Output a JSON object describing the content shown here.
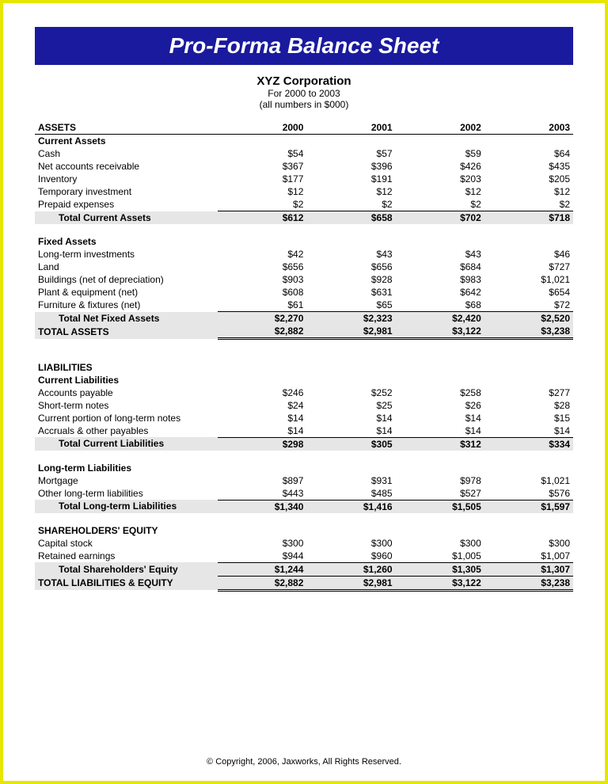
{
  "banner": "Pro-Forma Balance Sheet",
  "company": "XYZ Corporation",
  "range": "For 2000 to 2003",
  "units": "(all numbers in $000)",
  "years": [
    "2000",
    "2001",
    "2002",
    "2003"
  ],
  "assets": {
    "heading": "ASSETS",
    "current": {
      "heading": "Current Assets",
      "rows": [
        {
          "label": "Cash",
          "v": [
            "$54",
            "$57",
            "$59",
            "$64"
          ]
        },
        {
          "label": "Net accounts receivable",
          "v": [
            "$367",
            "$396",
            "$426",
            "$435"
          ]
        },
        {
          "label": "Inventory",
          "v": [
            "$177",
            "$191",
            "$203",
            "$205"
          ]
        },
        {
          "label": "Temporary investment",
          "v": [
            "$12",
            "$12",
            "$12",
            "$12"
          ]
        },
        {
          "label": "Prepaid expenses",
          "v": [
            "$2",
            "$2",
            "$2",
            "$2"
          ]
        }
      ],
      "total": {
        "label": "Total Current Assets",
        "v": [
          "$612",
          "$658",
          "$702",
          "$718"
        ]
      }
    },
    "fixed": {
      "heading": "Fixed Assets",
      "rows": [
        {
          "label": "Long-term investments",
          "v": [
            "$42",
            "$43",
            "$43",
            "$46"
          ]
        },
        {
          "label": "Land",
          "v": [
            "$656",
            "$656",
            "$684",
            "$727"
          ]
        },
        {
          "label": "Buildings (net of depreciation)",
          "v": [
            "$903",
            "$928",
            "$983",
            "$1,021"
          ]
        },
        {
          "label": "Plant & equipment (net)",
          "v": [
            "$608",
            "$631",
            "$642",
            "$654"
          ]
        },
        {
          "label": "Furniture & fixtures (net)",
          "v": [
            "$61",
            "$65",
            "$68",
            "$72"
          ]
        }
      ],
      "total": {
        "label": "Total Net Fixed Assets",
        "v": [
          "$2,270",
          "$2,323",
          "$2,420",
          "$2,520"
        ]
      }
    },
    "total": {
      "label": "TOTAL ASSETS",
      "v": [
        "$2,882",
        "$2,981",
        "$3,122",
        "$3,238"
      ]
    }
  },
  "liabilities": {
    "heading": "LIABILITIES",
    "current": {
      "heading": "Current Liabilities",
      "rows": [
        {
          "label": "Accounts payable",
          "v": [
            "$246",
            "$252",
            "$258",
            "$277"
          ]
        },
        {
          "label": "Short-term notes",
          "v": [
            "$24",
            "$25",
            "$26",
            "$28"
          ]
        },
        {
          "label": "Current portion of long-term notes",
          "v": [
            "$14",
            "$14",
            "$14",
            "$15"
          ]
        },
        {
          "label": "Accruals & other payables",
          "v": [
            "$14",
            "$14",
            "$14",
            "$14"
          ]
        }
      ],
      "total": {
        "label": "Total Current Liabilities",
        "v": [
          "$298",
          "$305",
          "$312",
          "$334"
        ]
      }
    },
    "longterm": {
      "heading": "Long-term Liabilities",
      "rows": [
        {
          "label": "Mortgage",
          "v": [
            "$897",
            "$931",
            "$978",
            "$1,021"
          ]
        },
        {
          "label": "Other long-term liabilities",
          "v": [
            "$443",
            "$485",
            "$527",
            "$576"
          ]
        }
      ],
      "total": {
        "label": "Total Long-term Liabilities",
        "v": [
          "$1,340",
          "$1,416",
          "$1,505",
          "$1,597"
        ]
      }
    }
  },
  "equity": {
    "heading": "SHAREHOLDERS' EQUITY",
    "rows": [
      {
        "label": "Capital stock",
        "v": [
          "$300",
          "$300",
          "$300",
          "$300"
        ]
      },
      {
        "label": "Retained earnings",
        "v": [
          "$944",
          "$960",
          "$1,005",
          "$1,007"
        ]
      }
    ],
    "total": {
      "label": "Total Shareholders' Equity",
      "v": [
        "$1,244",
        "$1,260",
        "$1,305",
        "$1,307"
      ]
    }
  },
  "grand": {
    "label": "TOTAL LIABILITIES & EQUITY",
    "v": [
      "$2,882",
      "$2,981",
      "$3,122",
      "$3,238"
    ]
  },
  "copyright": "© Copyright, 2006, Jaxworks, All Rights Reserved."
}
